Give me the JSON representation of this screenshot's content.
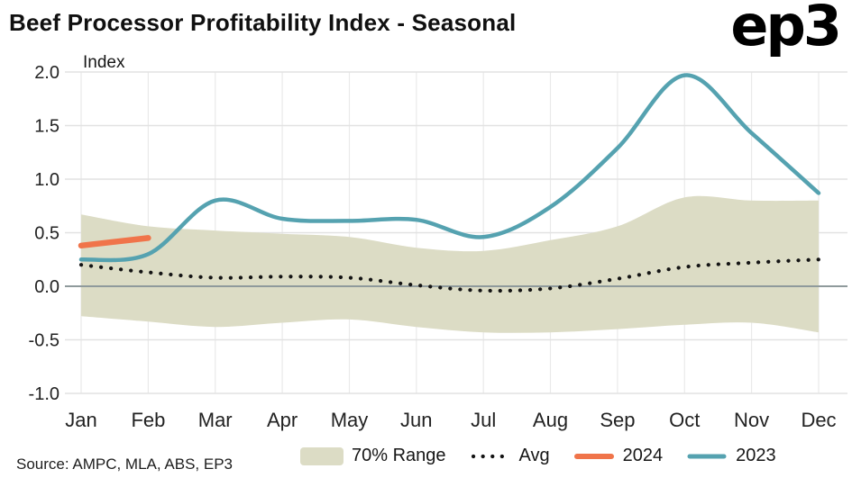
{
  "header": {
    "title": "Beef Processor Profitability Index - Seasonal",
    "logo": "ep3"
  },
  "footer": {
    "source": "Source: AMPC, MLA, ABS, EP3"
  },
  "legend": {
    "range_label": "70% Range",
    "avg_label": "Avg",
    "y2024_label": "2024",
    "y2023_label": "2023"
  },
  "colors": {
    "band": "#dcdcc5",
    "avg": "#141414",
    "y2024": "#f0744a",
    "y2023": "#55a2b0",
    "grid": "#e2e2e2",
    "grid_vertical": "#eaeaea",
    "zero_line": "#8f9a9c",
    "text": "#1a1a1a"
  },
  "chart_data": {
    "type": "line",
    "title": "Beef Processor Profitability Index - Seasonal",
    "xlabel": "",
    "ylabel": "Index",
    "ylim": [
      -1.0,
      2.0
    ],
    "yticks": [
      2.0,
      1.5,
      1.0,
      0.5,
      0.0,
      -0.5,
      -1.0
    ],
    "categories": [
      "Jan",
      "Feb",
      "Mar",
      "Apr",
      "May",
      "Jun",
      "Jul",
      "Aug",
      "Sep",
      "Oct",
      "Nov",
      "Dec"
    ],
    "band_70_range": {
      "name": "70% Range",
      "upper": [
        0.67,
        0.56,
        0.52,
        0.49,
        0.46,
        0.36,
        0.33,
        0.43,
        0.56,
        0.83,
        0.8,
        0.8
      ],
      "lower": [
        -0.28,
        -0.33,
        -0.38,
        -0.34,
        -0.31,
        -0.38,
        -0.43,
        -0.43,
        -0.4,
        -0.36,
        -0.34,
        -0.43
      ]
    },
    "series": [
      {
        "name": "Avg",
        "style": "dotted",
        "values": [
          0.2,
          0.13,
          0.08,
          0.09,
          0.08,
          0.01,
          -0.04,
          -0.02,
          0.07,
          0.18,
          0.22,
          0.25
        ]
      },
      {
        "name": "2024",
        "style": "solid",
        "values": [
          0.38,
          0.45,
          null,
          null,
          null,
          null,
          null,
          null,
          null,
          null,
          null,
          null
        ]
      },
      {
        "name": "2023",
        "style": "solid",
        "values": [
          0.25,
          0.3,
          0.8,
          0.63,
          0.61,
          0.62,
          0.46,
          0.74,
          1.29,
          1.97,
          1.43,
          0.87
        ]
      }
    ],
    "legend_position": "bottom",
    "grid": true
  }
}
